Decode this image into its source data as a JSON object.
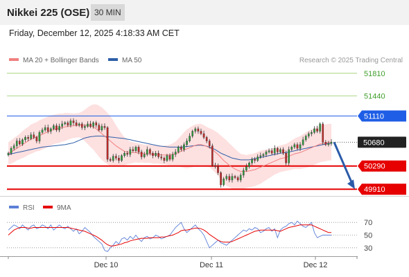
{
  "header": {
    "title": "Nikkei 225 (OSE)",
    "timeframe": "30 MIN",
    "datetime": "Friday, December 12, 2025 4:18:33 AM CET"
  },
  "chart_data": [
    {
      "type": "line",
      "title": "Nikkei 225 (OSE)",
      "legend": [
        {
          "name": "MA 20 + Bollinger Bands",
          "color": "#f08080"
        },
        {
          "name": "MA 50",
          "color": "#2e5ea8"
        }
      ],
      "credit": "Research © 2025 Trading Central",
      "ylim": [
        49810,
        51910
      ],
      "x_ticks": [
        "Dec 10",
        "Dec 11",
        "Dec 12"
      ],
      "levels": [
        {
          "value": 51810,
          "label": "51810",
          "kind": "target",
          "color": "#7dc242"
        },
        {
          "value": 51440,
          "label": "51440",
          "kind": "target",
          "color": "#7dc242"
        },
        {
          "value": 51110,
          "label": "51110",
          "kind": "resistance",
          "color": "#1e5ee6"
        },
        {
          "value": 50680,
          "label": "50680",
          "kind": "last",
          "color": "#222222"
        },
        {
          "value": 50290,
          "label": "50290",
          "kind": "support",
          "color": "#e60000"
        },
        {
          "value": 49910,
          "label": "49910",
          "kind": "support",
          "color": "#e60000"
        }
      ],
      "price_series": [
        50500,
        50580,
        50620,
        50700,
        50650,
        50720,
        50760,
        50740,
        50800,
        50760,
        50700,
        50840,
        50880,
        50920,
        50860,
        50900,
        50950,
        50880,
        50940,
        50980,
        51000,
        50960,
        51030,
        51000,
        50960,
        50980,
        50920,
        50940,
        50980,
        50940,
        51000,
        50960,
        50880,
        50940,
        50920,
        50400,
        50380,
        50450,
        50420,
        50380,
        50460,
        50500,
        50480,
        50560,
        50540,
        50600,
        50520,
        50440,
        50480,
        50560,
        50500,
        50460,
        50500,
        50440,
        50420,
        50380,
        50460,
        50400,
        50480,
        50520,
        50600,
        50560,
        50640,
        50700,
        50780,
        50860,
        50900,
        50860,
        50820,
        50760,
        50700,
        50620,
        50300,
        50280,
        50180,
        49980,
        50080,
        50120,
        50060,
        50120,
        50100,
        50060,
        50140,
        50220,
        50280,
        50340,
        50400,
        50380,
        50440,
        50460,
        50480,
        50520,
        50540,
        50500,
        50580,
        50520,
        50560,
        50500,
        50340,
        50560,
        50600,
        50640,
        50580,
        50640,
        50720,
        50780,
        50820,
        50840,
        50900,
        50860,
        50980,
        50680,
        50640,
        50660,
        50680
      ],
      "ma20": [
        50500,
        50520,
        50550,
        50580,
        50610,
        50640,
        50670,
        50700,
        50730,
        50750,
        50770,
        50790,
        50810,
        50830,
        50850,
        50870,
        50890,
        50900,
        50910,
        50920,
        50930,
        50940,
        50945,
        50950,
        50955,
        50960,
        50960,
        50955,
        50950,
        50940,
        50930,
        50900,
        50860,
        50820,
        50780,
        50740,
        50700,
        50660,
        50620,
        50590,
        50560,
        50530,
        50520,
        50510,
        50510,
        50510,
        50500,
        50500,
        50490,
        50490,
        50490,
        50480,
        50480,
        50480,
        50470,
        50470,
        50470,
        50470,
        50480,
        50490,
        50510,
        50530,
        50550,
        50570,
        50590,
        50610,
        50630,
        50640,
        50640,
        50630,
        50610,
        50590,
        50560,
        50520,
        50480,
        50430,
        50380,
        50340,
        50300,
        50270,
        50240,
        50220,
        50200,
        50200,
        50200,
        50210,
        50220,
        50230,
        50250,
        50270,
        50290,
        50310,
        50330,
        50350,
        50370,
        50390,
        50410,
        50420,
        50430,
        50450,
        50470,
        50490,
        50500,
        50510,
        50530,
        50550,
        50570,
        50590,
        50610,
        50630,
        50650,
        50660,
        50670,
        50680,
        50680
      ],
      "bb_width": [
        180,
        190,
        200,
        200,
        210,
        220,
        230,
        230,
        240,
        240,
        240,
        250,
        250,
        250,
        250,
        250,
        240,
        240,
        240,
        230,
        230,
        220,
        210,
        200,
        200,
        200,
        220,
        260,
        300,
        340,
        370,
        400,
        420,
        430,
        430,
        420,
        410,
        380,
        340,
        300,
        260,
        230,
        200,
        180,
        170,
        160,
        160,
        150,
        150,
        150,
        150,
        150,
        150,
        150,
        150,
        150,
        160,
        170,
        180,
        200,
        230,
        260,
        290,
        320,
        330,
        340,
        340,
        340,
        340,
        330,
        320,
        320,
        330,
        340,
        350,
        360,
        370,
        370,
        360,
        350,
        330,
        310,
        290,
        280,
        270,
        270,
        270,
        270,
        270,
        270,
        260,
        250,
        240,
        230,
        220,
        220,
        220,
        220,
        220,
        230,
        240,
        250,
        260,
        270,
        280,
        290,
        300,
        300,
        300,
        300,
        300,
        300,
        300,
        300,
        300
      ],
      "ma50": [
        50480,
        50490,
        50500,
        50510,
        50520,
        50530,
        50540,
        50550,
        50560,
        50570,
        50580,
        50590,
        50600,
        50605,
        50610,
        50615,
        50620,
        50625,
        50630,
        50635,
        50640,
        50650,
        50660,
        50670,
        50690,
        50710,
        50730,
        50750,
        50760,
        50770,
        50775,
        50780,
        50780,
        50780,
        50775,
        50770,
        50765,
        50760,
        50755,
        50750,
        50745,
        50740,
        50730,
        50720,
        50710,
        50700,
        50690,
        50680,
        50670,
        50660,
        50650,
        50640,
        50630,
        50620,
        50615,
        50610,
        50605,
        50600,
        50600,
        50600,
        50600,
        50600,
        50605,
        50610,
        50615,
        50620,
        50625,
        50630,
        50630,
        50625,
        50615,
        50600,
        50580,
        50560,
        50530,
        50500,
        50480,
        50460,
        50440,
        50420,
        50410,
        50400,
        50390,
        50390,
        50390,
        50390,
        50400,
        50410,
        50420,
        50430,
        50440,
        50450,
        50460,
        50470,
        50480,
        50490,
        50500,
        50505,
        50510,
        50520,
        50530,
        50540,
        50550,
        50560,
        50570,
        50580,
        50590,
        50600,
        50610,
        50620,
        50630,
        50640,
        50650,
        50660,
        50660
      ],
      "forecast": [
        50680,
        49910
      ]
    },
    {
      "type": "line",
      "legend": [
        {
          "name": "RSI",
          "color": "#5b7fd6"
        },
        {
          "name": "9MA",
          "color": "#e60000"
        }
      ],
      "ylim": [
        20,
        80
      ],
      "y_ticks": [
        "70",
        "50",
        "30"
      ],
      "rsi": [
        58,
        62,
        66,
        64,
        60,
        66,
        62,
        58,
        64,
        66,
        60,
        62,
        66,
        64,
        60,
        66,
        58,
        62,
        66,
        62,
        60,
        64,
        60,
        56,
        60,
        52,
        56,
        62,
        58,
        54,
        48,
        44,
        40,
        36,
        26,
        24,
        30,
        34,
        40,
        36,
        44,
        46,
        42,
        48,
        44,
        50,
        44,
        40,
        46,
        48,
        44,
        46,
        50,
        48,
        44,
        46,
        48,
        50,
        56,
        62,
        66,
        70,
        60,
        54,
        58,
        62,
        66,
        60,
        56,
        50,
        40,
        30,
        34,
        38,
        42,
        38,
        36,
        34,
        38,
        42,
        46,
        50,
        54,
        58,
        56,
        60,
        58,
        62,
        60,
        54,
        56,
        60,
        62,
        56,
        60,
        46,
        58,
        62,
        64,
        68,
        70,
        66,
        72,
        68,
        64,
        62,
        66,
        70,
        54,
        46,
        48,
        50,
        50,
        50,
        50
      ],
      "ma9": [
        50,
        54,
        58,
        60,
        62,
        62,
        62,
        61,
        61,
        62,
        62,
        62,
        62,
        62,
        62,
        62,
        62,
        62,
        62,
        62,
        62,
        62,
        61,
        60,
        59,
        58,
        57,
        56,
        54,
        52,
        50,
        48,
        45,
        42,
        38,
        35,
        33,
        33,
        34,
        35,
        36,
        38,
        39,
        41,
        42,
        43,
        44,
        45,
        45,
        45,
        46,
        46,
        46,
        46,
        47,
        47,
        48,
        49,
        50,
        52,
        54,
        57,
        58,
        58,
        59,
        60,
        61,
        61,
        60,
        58,
        55,
        51,
        48,
        45,
        42,
        40,
        39,
        39,
        39,
        40,
        42,
        44,
        46,
        48,
        50,
        52,
        54,
        56,
        57,
        58,
        58,
        58,
        58,
        58,
        58,
        57,
        56,
        58,
        60,
        62,
        63,
        64,
        65,
        66,
        66,
        66,
        66,
        66,
        64,
        62,
        60,
        58,
        56,
        54,
        54
      ]
    }
  ]
}
